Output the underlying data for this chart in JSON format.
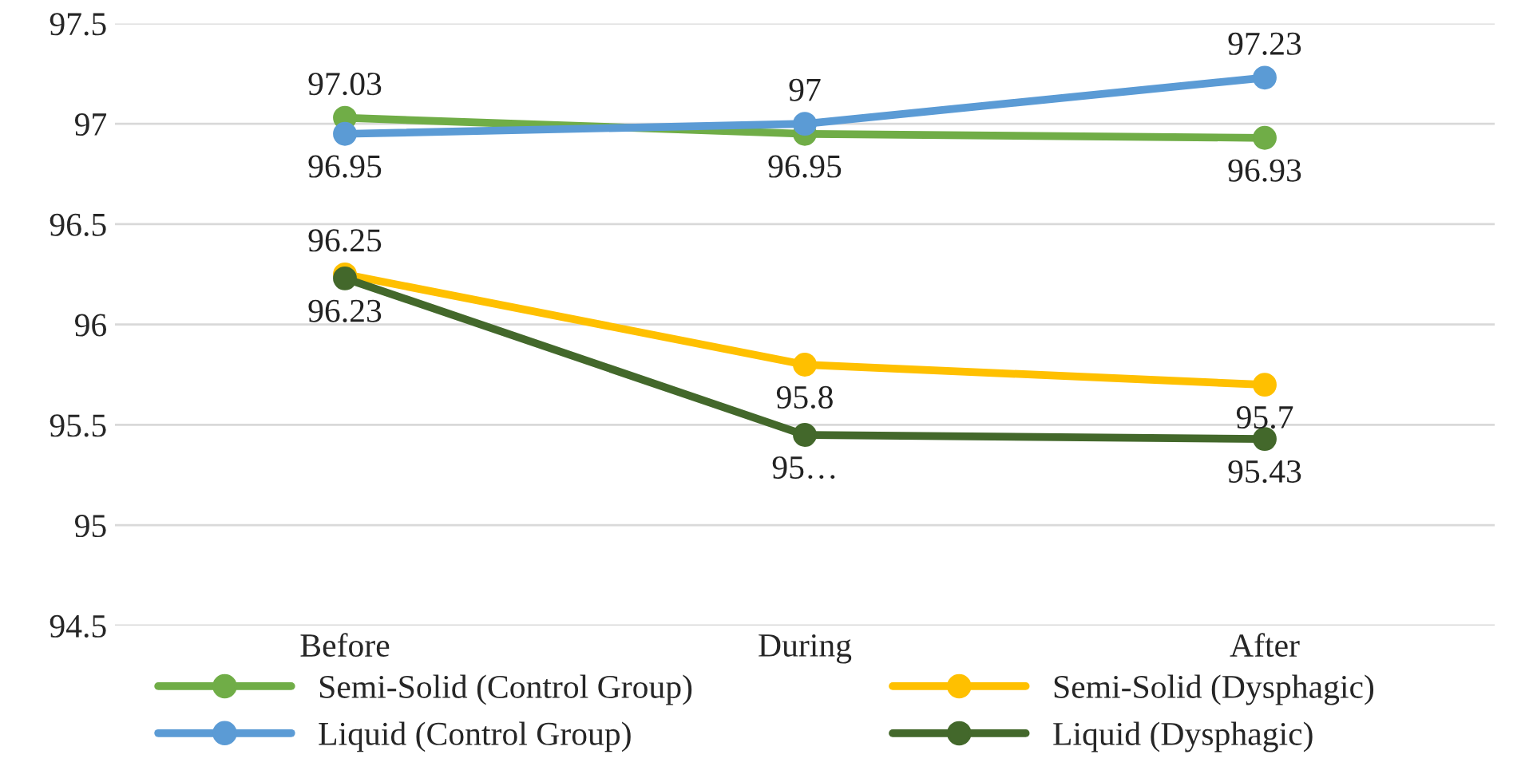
{
  "chart_data": {
    "type": "line",
    "categories": [
      "Before",
      "During",
      "After"
    ],
    "series": [
      {
        "name": "Semi-Solid (Control Group)",
        "color": "#70ad47",
        "values": [
          97.03,
          96.95,
          96.93
        ],
        "value_labels": [
          "97.03",
          "96.95",
          "96.93"
        ]
      },
      {
        "name": "Liquid (Control Group)",
        "color": "#5b9bd5",
        "values": [
          96.95,
          97,
          97.23
        ],
        "value_labels": [
          "96.95",
          "97",
          "97.23"
        ]
      },
      {
        "name": "Semi-Solid (Dysphagic)",
        "color": "#ffc000",
        "values": [
          96.25,
          95.8,
          95.7
        ],
        "value_labels": [
          "96.25",
          "95.8",
          "95.7"
        ]
      },
      {
        "name": "Liquid (Dysphagic)",
        "color": "#43682b",
        "values": [
          96.23,
          95.45,
          95.43
        ],
        "value_labels": [
          "96.23",
          "95…",
          "95.43"
        ]
      }
    ],
    "ylim": [
      94.5,
      97.5
    ],
    "yticks": [
      94.5,
      95,
      95.5,
      96,
      96.5,
      97,
      97.5
    ],
    "grid": "y",
    "legend": "bottom",
    "marker": "circle",
    "line_style": "solid"
  }
}
